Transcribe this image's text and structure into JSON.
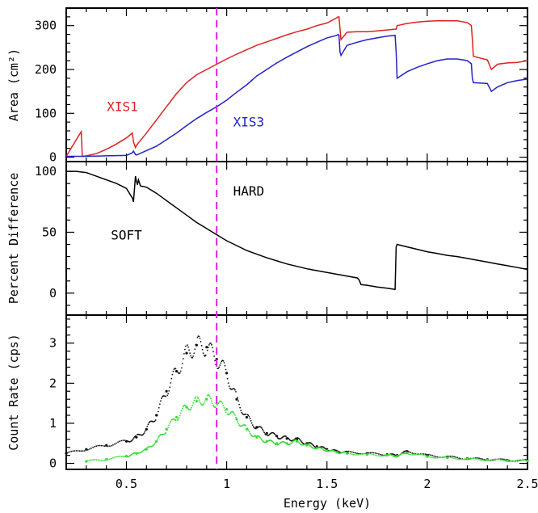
{
  "chart_data": {
    "type": "line",
    "xlabel": "Energy (keV)",
    "xlim": [
      0.2,
      2.5
    ],
    "x_ticks": [
      "0.5",
      "1",
      "1.5",
      "2",
      "2.5"
    ],
    "x_tick_values": [
      0.5,
      1.0,
      1.5,
      2.0,
      2.5
    ],
    "marker_line": {
      "x": 0.95,
      "color": "#dd22dd",
      "style": "dashed"
    },
    "panels": [
      {
        "ylabel": "Area (cm²)",
        "ylim": [
          -10,
          340
        ],
        "y_ticks": [
          "0",
          "100",
          "200",
          "300"
        ],
        "y_tick_values": [
          0,
          100,
          200,
          300
        ],
        "annotations": [
          {
            "text": "XIS1",
            "x": 0.48,
            "y": 105,
            "color": "#dd2222"
          },
          {
            "text": "XIS3",
            "x": 1.11,
            "y": 70,
            "color": "#2222cc"
          }
        ],
        "series": [
          {
            "name": "XIS1",
            "color": "#dd2222",
            "x": [
              0.2,
              0.25,
              0.275,
              0.28,
              0.3,
              0.35,
              0.4,
              0.45,
              0.5,
              0.53,
              0.535,
              0.545,
              0.55,
              0.6,
              0.65,
              0.7,
              0.75,
              0.8,
              0.85,
              0.9,
              0.95,
              1.0,
              1.05,
              1.1,
              1.15,
              1.2,
              1.25,
              1.3,
              1.35,
              1.4,
              1.45,
              1.5,
              1.55,
              1.555,
              1.56,
              1.57,
              1.6,
              1.65,
              1.7,
              1.75,
              1.8,
              1.84,
              1.845,
              1.85,
              1.9,
              1.95,
              2.0,
              2.05,
              2.1,
              2.15,
              2.2,
              2.22,
              2.225,
              2.23,
              2.3,
              2.32,
              2.35,
              2.4,
              2.45,
              2.5
            ],
            "y": [
              2,
              40,
              58,
              2,
              3,
              8,
              18,
              30,
              44,
              55,
              35,
              22,
              27,
              55,
              85,
              115,
              145,
              170,
              188,
              200,
              212,
              224,
              235,
              245,
              255,
              263,
              271,
              279,
              286,
              292,
              300,
              306,
              318,
              320,
              320,
              268,
              285,
              286,
              286,
              288,
              290,
              292,
              292,
              300,
              305,
              308,
              310,
              311,
              311,
              311,
              307,
              300,
              270,
              230,
              222,
              200,
              212,
              215,
              216,
              220
            ]
          },
          {
            "name": "XIS3",
            "color": "#2222cc",
            "x": [
              0.2,
              0.3,
              0.4,
              0.5,
              0.53,
              0.535,
              0.545,
              0.55,
              0.6,
              0.65,
              0.7,
              0.75,
              0.8,
              0.85,
              0.9,
              0.95,
              1.0,
              1.05,
              1.1,
              1.15,
              1.2,
              1.25,
              1.3,
              1.35,
              1.4,
              1.45,
              1.5,
              1.55,
              1.555,
              1.56,
              1.565,
              1.57,
              1.6,
              1.65,
              1.7,
              1.75,
              1.8,
              1.84,
              1.845,
              1.85,
              1.9,
              1.95,
              2.0,
              2.05,
              2.1,
              2.15,
              2.2,
              2.22,
              2.225,
              2.23,
              2.3,
              2.32,
              2.35,
              2.4,
              2.45,
              2.5
            ],
            "y": [
              2,
              2,
              3,
              4,
              10,
              14,
              6,
              5,
              15,
              25,
              40,
              55,
              72,
              88,
              102,
              115,
              130,
              148,
              165,
              185,
              200,
              215,
              228,
              240,
              252,
              262,
              272,
              278,
              280,
              278,
              240,
              232,
              255,
              262,
              268,
              272,
              276,
              278,
              240,
              180,
              195,
              205,
              213,
              220,
              224,
              224,
              220,
              213,
              180,
              170,
              168,
              150,
              160,
              170,
              175,
              178
            ]
          }
        ]
      },
      {
        "ylabel": "Percent Difference",
        "ylim": [
          -18,
          108
        ],
        "y_ticks": [
          "0",
          "50",
          "100"
        ],
        "y_tick_values": [
          0,
          50,
          100
        ],
        "annotations": [
          {
            "text": "HARD",
            "x": 1.11,
            "y": 80,
            "color": "#000000"
          },
          {
            "text": "SOFT",
            "x": 0.5,
            "y": 44,
            "color": "#000000"
          }
        ],
        "series": [
          {
            "name": "",
            "color": "#000000",
            "x": [
              0.2,
              0.25,
              0.3,
              0.35,
              0.4,
              0.45,
              0.5,
              0.53,
              0.535,
              0.545,
              0.55,
              0.555,
              0.56,
              0.57,
              0.6,
              0.65,
              0.7,
              0.75,
              0.8,
              0.85,
              0.9,
              0.95,
              1.0,
              1.05,
              1.1,
              1.15,
              1.2,
              1.25,
              1.3,
              1.35,
              1.4,
              1.45,
              1.5,
              1.55,
              1.6,
              1.65,
              1.66,
              1.67,
              1.7,
              1.75,
              1.8,
              1.84,
              1.845,
              1.85,
              1.9,
              1.95,
              2.0,
              2.05,
              2.1,
              2.15,
              2.2,
              2.25,
              2.3,
              2.35,
              2.4,
              2.45,
              2.5
            ],
            "y": [
              100,
              100,
              99,
              96,
              93,
              90,
              86,
              78,
              75,
              96,
              92,
              89,
              93,
              88,
              87,
              82,
              76,
              70,
              64,
              58,
              53,
              48,
              43,
              39,
              35,
              32,
              29,
              26.5,
              24,
              22,
              20,
              18.5,
              17,
              15.5,
              14,
              12.5,
              11,
              7,
              6.5,
              5,
              4,
              3,
              38,
              40,
              38,
              36,
              34,
              32.5,
              31,
              30,
              28.5,
              27,
              25.5,
              24,
              22.5,
              21,
              19.5
            ]
          }
        ]
      },
      {
        "ylabel": "Count Rate (cps)",
        "ylim": [
          -0.15,
          3.7
        ],
        "y_ticks": [
          "0",
          "1",
          "2",
          "3"
        ],
        "y_tick_values": [
          0,
          1,
          2,
          3
        ],
        "scatter_series": [
          {
            "name": "",
            "color": "#111111",
            "x": [
              0.2,
              0.3,
              0.4,
              0.5,
              0.55,
              0.6,
              0.65,
              0.7,
              0.75,
              0.8,
              0.85,
              0.9,
              0.95,
              1.0,
              1.05,
              1.1,
              1.15,
              1.2,
              1.25,
              1.3,
              1.35,
              1.4,
              1.45,
              1.5,
              1.55,
              1.6,
              1.7,
              1.8,
              1.85,
              1.9,
              2.0,
              2.1,
              2.2,
              2.3,
              2.4,
              2.5
            ],
            "y": [
              0.25,
              0.35,
              0.45,
              0.55,
              0.65,
              0.85,
              1.2,
              1.8,
              2.3,
              2.75,
              2.95,
              2.9,
              2.6,
              2.25,
              1.6,
              1.15,
              0.9,
              0.75,
              0.68,
              0.62,
              0.6,
              0.5,
              0.42,
              0.35,
              0.3,
              0.28,
              0.25,
              0.22,
              0.2,
              0.3,
              0.2,
              0.16,
              0.12,
              0.1,
              0.08,
              0.07
            ]
          },
          {
            "name": "",
            "color": "#33dd33",
            "x": [
              0.3,
              0.4,
              0.5,
              0.55,
              0.6,
              0.65,
              0.7,
              0.75,
              0.8,
              0.85,
              0.9,
              0.95,
              1.0,
              1.05,
              1.1,
              1.15,
              1.2,
              1.25,
              1.3,
              1.35,
              1.4,
              1.45,
              1.5,
              1.55,
              1.6,
              1.7,
              1.8,
              1.85,
              1.9,
              2.0,
              2.1,
              2.2,
              2.3,
              2.4,
              2.5
            ],
            "y": [
              0.05,
              0.1,
              0.18,
              0.25,
              0.35,
              0.55,
              0.85,
              1.15,
              1.4,
              1.55,
              1.6,
              1.5,
              1.35,
              1.1,
              0.85,
              0.65,
              0.55,
              0.5,
              0.5,
              0.55,
              0.45,
              0.38,
              0.32,
              0.28,
              0.25,
              0.22,
              0.2,
              0.18,
              0.26,
              0.17,
              0.14,
              0.11,
              0.09,
              0.07,
              0.06
            ]
          }
        ]
      }
    ]
  }
}
